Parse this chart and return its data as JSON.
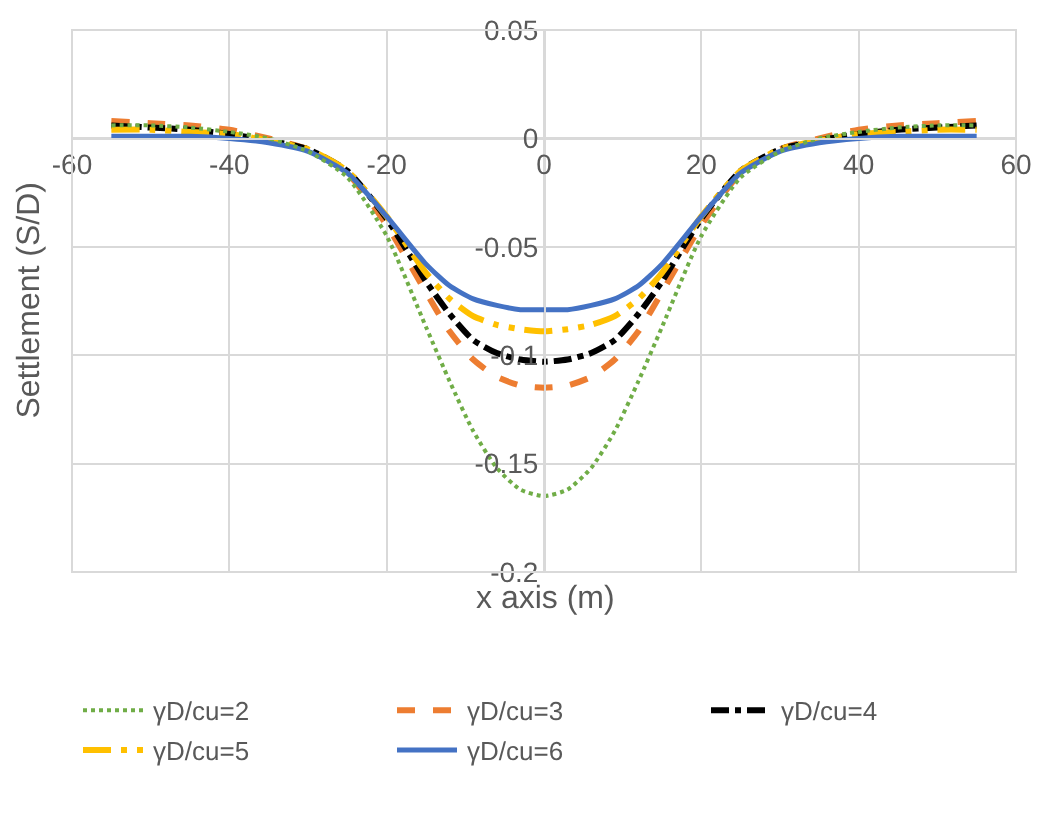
{
  "chart_data": {
    "type": "line",
    "xlabel": "x axis (m)",
    "ylabel": "Settlement (S/D)",
    "x": [
      -55,
      -50,
      -45,
      -40,
      -35,
      -30,
      -25,
      -20,
      -15,
      -12,
      -9,
      -6,
      -3,
      0,
      3,
      6,
      9,
      12,
      15,
      20,
      25,
      30,
      35,
      40,
      45,
      50,
      55
    ],
    "series": [
      {
        "name": "γD/cu=2",
        "color": "#70ad47",
        "line_style": "dotted",
        "values": [
          0.006,
          0.006,
          0.005,
          0.003,
          0,
          -0.006,
          -0.018,
          -0.045,
          -0.087,
          -0.112,
          -0.135,
          -0.152,
          -0.162,
          -0.165,
          -0.162,
          -0.152,
          -0.135,
          -0.112,
          -0.087,
          -0.045,
          -0.018,
          -0.006,
          0,
          0.003,
          0.005,
          0.006,
          0.006
        ]
      },
      {
        "name": "γD/cu=3",
        "color": "#ed7d31",
        "line_style": "dashed",
        "values": [
          0.008,
          0.007,
          0.006,
          0.004,
          0,
          -0.005,
          -0.016,
          -0.04,
          -0.071,
          -0.089,
          -0.102,
          -0.11,
          -0.114,
          -0.115,
          -0.114,
          -0.11,
          -0.102,
          -0.089,
          -0.071,
          -0.04,
          -0.016,
          -0.005,
          0,
          0.004,
          0.006,
          0.007,
          0.008
        ]
      },
      {
        "name": "γD/cu=4",
        "color": "#000000",
        "line_style": "dashdot",
        "values": [
          0.006,
          0.005,
          0.004,
          0.002,
          -0.001,
          -0.005,
          -0.015,
          -0.037,
          -0.066,
          -0.081,
          -0.093,
          -0.099,
          -0.102,
          -0.103,
          -0.102,
          -0.099,
          -0.093,
          -0.081,
          -0.066,
          -0.037,
          -0.015,
          -0.005,
          -0.001,
          0.002,
          0.004,
          0.005,
          0.006
        ]
      },
      {
        "name": "γD/cu=5",
        "color": "#ffc000",
        "line_style": "dashdotdot",
        "values": [
          0.004,
          0.004,
          0.003,
          0.002,
          -0.001,
          -0.005,
          -0.015,
          -0.036,
          -0.062,
          -0.074,
          -0.082,
          -0.086,
          -0.088,
          -0.089,
          -0.088,
          -0.086,
          -0.082,
          -0.074,
          -0.062,
          -0.036,
          -0.015,
          -0.005,
          -0.001,
          0.002,
          0.003,
          0.004,
          0.004
        ]
      },
      {
        "name": "γD/cu=6",
        "color": "#4472c4",
        "line_style": "solid",
        "values": [
          0.001,
          0.001,
          0.001,
          0,
          -0.002,
          -0.006,
          -0.016,
          -0.036,
          -0.058,
          -0.068,
          -0.074,
          -0.077,
          -0.079,
          -0.079,
          -0.079,
          -0.077,
          -0.074,
          -0.068,
          -0.058,
          -0.036,
          -0.016,
          -0.006,
          -0.002,
          0,
          0.001,
          0.001,
          0.001
        ]
      }
    ],
    "xlim": [
      -60,
      60
    ],
    "xticks": [
      -60,
      -40,
      -20,
      0,
      20,
      40,
      60
    ],
    "ylim": [
      -0.2,
      0.05
    ],
    "yticks": [
      -0.2,
      -0.15,
      -0.1,
      -0.05,
      0,
      0.05
    ],
    "grid": true,
    "legend": "bottom",
    "marker": "none"
  }
}
